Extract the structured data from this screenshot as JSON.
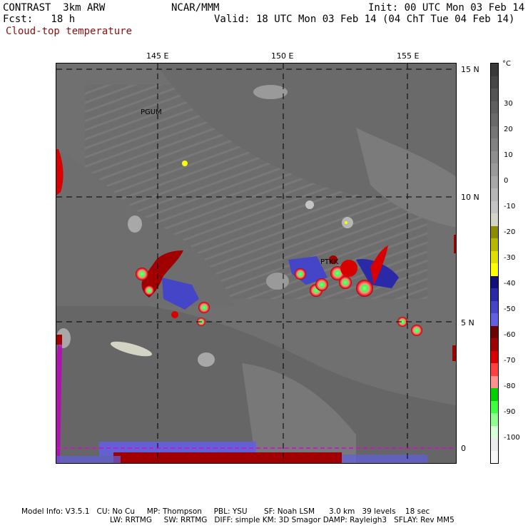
{
  "header": {
    "model": "CONTRAST  3km ARW",
    "org": "NCAR/MMM",
    "init": "Init: 00 UTC Mon 03 Feb 14",
    "fcst": "Fcst:   18 h",
    "valid": "Valid: 18 UTC Mon 03 Feb 14 (04 ChT Tue 04 Feb 14)",
    "field": "Cloud-top temperature"
  },
  "axes": {
    "lon_labels": [
      "145 E",
      "150 E",
      "155 E"
    ],
    "lat_labels": [
      "15 N",
      "10 N",
      "5 N",
      "0"
    ]
  },
  "places": [
    "PGUM",
    "PTKK"
  ],
  "colorbar": {
    "unit": "°C",
    "labels": [
      "30",
      "20",
      "10",
      "0",
      "-10",
      "-20",
      "-30",
      "-40",
      "-50",
      "-60",
      "-70",
      "-80",
      "-90",
      "-100"
    ],
    "colors": [
      "#3a3a3a",
      "#474747",
      "#545454",
      "#5f5f5f",
      "#6a6a6a",
      "#767676",
      "#828282",
      "#8e8e8e",
      "#9a9a9a",
      "#a8a8a8",
      "#b6b6b6",
      "#c4c4c4",
      "#d4d4c4",
      "#8c8c00",
      "#b8b800",
      "#e0e000",
      "#ffff00",
      "#10107a",
      "#2a2aa8",
      "#4545c8",
      "#6060e0",
      "#6a0000",
      "#a00000",
      "#d80000",
      "#ff4040",
      "#ff9090",
      "#00d000",
      "#40ff40",
      "#90ff90",
      "#d8ffd8",
      "#ececec",
      "#f8f8f8"
    ]
  },
  "footer": {
    "line1": "Model Info: V3.5.1   CU: No Cu     MP: Thompson     PBL: YSU       SF: Noah LSM      3.0 km   39 levels    18 sec",
    "line2": "LW: RRTMG     SW: RRTMG   DIFF: simple KM: 3D Smagor DAMP: Rayleigh3   SFLAY: Rev MM5"
  }
}
